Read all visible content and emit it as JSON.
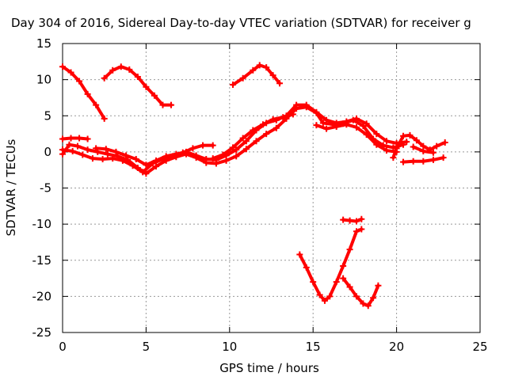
{
  "chart_data": {
    "type": "scatter",
    "title": "Day 304 of 2016, Sidereal Day-to-day VTEC variation (SDTVAR) for receiver g",
    "xlabel": "GPS time / hours",
    "ylabel": "SDTVAR / TECUs",
    "xlim": [
      0,
      25
    ],
    "ylim": [
      -25,
      15
    ],
    "xticks": [
      0,
      5,
      10,
      15,
      20,
      25
    ],
    "yticks": [
      -25,
      -20,
      -15,
      -10,
      -5,
      0,
      5,
      10,
      15
    ],
    "grid": true,
    "legend": "none",
    "marker": "plus",
    "color": "#ff0000",
    "series": [
      {
        "values": [
          [
            0.0,
            11.8
          ],
          [
            0.5,
            11.0
          ],
          [
            1.0,
            9.8
          ],
          [
            1.5,
            8.0
          ],
          [
            2.0,
            6.5
          ],
          [
            2.5,
            4.6
          ]
        ]
      },
      {
        "values": [
          [
            2.5,
            10.2
          ],
          [
            3.0,
            11.3
          ],
          [
            3.5,
            11.8
          ],
          [
            4.0,
            11.4
          ],
          [
            4.5,
            10.4
          ],
          [
            5.0,
            9.0
          ],
          [
            5.5,
            7.8
          ],
          [
            6.0,
            6.5
          ],
          [
            6.5,
            6.5
          ]
        ]
      },
      {
        "values": [
          [
            10.2,
            9.3
          ],
          [
            10.8,
            10.2
          ],
          [
            11.4,
            11.3
          ],
          [
            11.8,
            12.0
          ],
          [
            12.2,
            11.7
          ],
          [
            12.6,
            10.6
          ],
          [
            13.0,
            9.5
          ]
        ]
      },
      {
        "values": [
          [
            0.0,
            1.8
          ],
          [
            0.5,
            1.9
          ],
          [
            1.0,
            1.9
          ],
          [
            1.5,
            1.8
          ]
        ]
      },
      {
        "values": [
          [
            0.0,
            0.3
          ],
          [
            0.6,
            0.1
          ],
          [
            1.2,
            -0.4
          ],
          [
            1.8,
            -0.9
          ],
          [
            2.4,
            -1.0
          ],
          [
            3.0,
            -0.9
          ],
          [
            3.6,
            -1.2
          ],
          [
            4.2,
            -1.9
          ],
          [
            4.8,
            -2.8
          ],
          [
            5.4,
            -1.6
          ],
          [
            6.0,
            -1.0
          ],
          [
            6.6,
            -0.6
          ],
          [
            7.2,
            -0.1
          ],
          [
            7.8,
            0.5
          ],
          [
            8.4,
            0.9
          ],
          [
            9.0,
            0.9
          ]
        ]
      },
      {
        "values": [
          [
            0.0,
            -0.3
          ],
          [
            0.4,
            1.0
          ],
          [
            0.9,
            0.8
          ],
          [
            1.5,
            0.3
          ],
          [
            2.1,
            0.0
          ],
          [
            2.7,
            -0.3
          ],
          [
            3.3,
            -0.6
          ],
          [
            3.9,
            -1.1
          ],
          [
            4.5,
            -2.2
          ],
          [
            5.0,
            -3.0
          ],
          [
            5.6,
            -2.0
          ],
          [
            6.2,
            -1.2
          ],
          [
            6.8,
            -0.7
          ],
          [
            7.4,
            -0.3
          ],
          [
            8.0,
            -0.8
          ],
          [
            8.6,
            -1.5
          ],
          [
            9.2,
            -1.6
          ],
          [
            9.8,
            -1.2
          ],
          [
            10.4,
            -0.6
          ],
          [
            11.0,
            0.4
          ],
          [
            11.6,
            1.5
          ],
          [
            12.2,
            2.5
          ],
          [
            12.8,
            3.3
          ],
          [
            13.4,
            4.6
          ],
          [
            14.0,
            6.0
          ],
          [
            14.6,
            6.2
          ],
          [
            15.2,
            5.4
          ],
          [
            15.6,
            4.0
          ],
          [
            16.2,
            3.8
          ],
          [
            16.8,
            3.9
          ],
          [
            17.4,
            4.4
          ],
          [
            18.0,
            3.6
          ],
          [
            18.6,
            1.8
          ],
          [
            19.2,
            0.9
          ],
          [
            19.8,
            0.6
          ],
          [
            20.4,
            1.0
          ]
        ]
      },
      {
        "values": [
          [
            2.0,
            0.5
          ],
          [
            2.6,
            0.4
          ],
          [
            3.2,
            0.0
          ],
          [
            3.8,
            -0.5
          ],
          [
            4.4,
            -1.0
          ],
          [
            5.0,
            -1.8
          ],
          [
            5.6,
            -1.2
          ],
          [
            6.2,
            -0.6
          ],
          [
            6.8,
            -0.3
          ],
          [
            7.4,
            0.0
          ],
          [
            8.0,
            -0.5
          ],
          [
            8.6,
            -1.0
          ],
          [
            9.2,
            -1.1
          ],
          [
            9.8,
            -0.5
          ],
          [
            10.4,
            0.3
          ],
          [
            11.0,
            1.5
          ],
          [
            11.6,
            3.0
          ],
          [
            12.2,
            4.0
          ],
          [
            12.8,
            4.4
          ],
          [
            13.4,
            5.0
          ],
          [
            14.0,
            6.5
          ],
          [
            14.6,
            6.5
          ],
          [
            15.2,
            5.5
          ],
          [
            15.8,
            4.4
          ],
          [
            16.4,
            4.0
          ],
          [
            17.0,
            4.2
          ],
          [
            17.6,
            4.6
          ],
          [
            18.2,
            3.9
          ],
          [
            18.8,
            2.5
          ],
          [
            19.4,
            1.5
          ],
          [
            20.0,
            1.2
          ],
          [
            20.6,
            1.4
          ]
        ]
      },
      {
        "values": [
          [
            9.0,
            -0.9
          ],
          [
            9.6,
            -0.4
          ],
          [
            10.2,
            0.6
          ],
          [
            10.8,
            1.9
          ],
          [
            11.4,
            3.0
          ],
          [
            12.0,
            3.8
          ],
          [
            12.6,
            4.5
          ],
          [
            13.2,
            4.8
          ],
          [
            13.8,
            5.2
          ]
        ]
      },
      {
        "values": [
          [
            15.2,
            3.7
          ],
          [
            15.8,
            3.2
          ],
          [
            16.4,
            3.5
          ],
          [
            17.0,
            3.8
          ],
          [
            17.6,
            3.4
          ],
          [
            18.2,
            2.4
          ],
          [
            18.8,
            1.0
          ],
          [
            19.4,
            0.2
          ],
          [
            20.0,
            0.0
          ]
        ]
      },
      {
        "values": [
          [
            19.8,
            -0.8
          ],
          [
            20.0,
            0.5
          ],
          [
            20.4,
            2.2
          ],
          [
            20.8,
            2.3
          ],
          [
            21.2,
            1.6
          ],
          [
            21.6,
            0.8
          ],
          [
            22.0,
            0.3
          ],
          [
            22.4,
            0.8
          ],
          [
            22.9,
            1.3
          ]
        ]
      },
      {
        "values": [
          [
            21.0,
            0.7
          ],
          [
            21.6,
            0.1
          ],
          [
            22.2,
            -0.1
          ]
        ]
      },
      {
        "values": [
          [
            20.4,
            -1.4
          ],
          [
            21.0,
            -1.3
          ],
          [
            21.6,
            -1.3
          ],
          [
            22.2,
            -1.1
          ],
          [
            22.8,
            -0.8
          ]
        ]
      },
      {
        "values": [
          [
            14.2,
            -14.2
          ],
          [
            14.6,
            -16.0
          ],
          [
            15.0,
            -18.0
          ],
          [
            15.4,
            -19.8
          ],
          [
            15.7,
            -20.6
          ],
          [
            16.0,
            -20.0
          ],
          [
            16.4,
            -18.0
          ],
          [
            16.8,
            -15.8
          ],
          [
            17.2,
            -13.5
          ],
          [
            17.6,
            -11.0
          ],
          [
            17.9,
            -10.7
          ]
        ]
      },
      {
        "values": [
          [
            16.8,
            -9.4
          ],
          [
            17.2,
            -9.5
          ],
          [
            17.6,
            -9.6
          ],
          [
            17.9,
            -9.3
          ]
        ]
      },
      {
        "values": [
          [
            16.8,
            -17.5
          ],
          [
            17.2,
            -18.7
          ],
          [
            17.6,
            -20.0
          ],
          [
            18.0,
            -21.0
          ],
          [
            18.3,
            -21.3
          ],
          [
            18.6,
            -20.2
          ],
          [
            18.9,
            -18.5
          ]
        ]
      }
    ]
  }
}
